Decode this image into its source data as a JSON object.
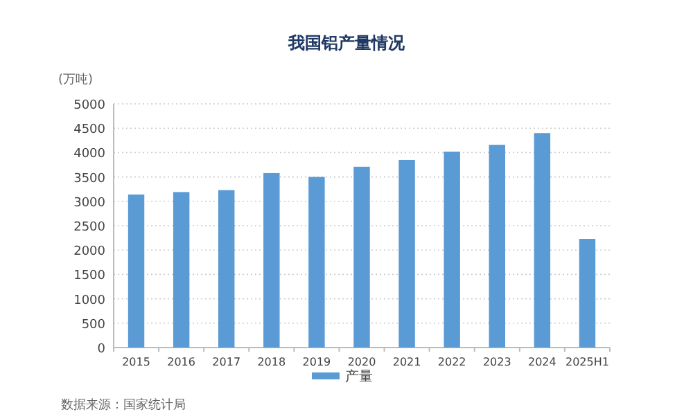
{
  "chart_data": {
    "type": "bar",
    "title": "我国铝产量情况",
    "ylabel": "(万吨)",
    "categories": [
      "2015",
      "2016",
      "2017",
      "2018",
      "2019",
      "2020",
      "2021",
      "2022",
      "2023",
      "2024",
      "2025H1"
    ],
    "series": [
      {
        "name": "产量",
        "color": "#5b9bd5",
        "values": [
          3140,
          3190,
          3230,
          3580,
          3500,
          3710,
          3850,
          4020,
          4160,
          4400,
          2230
        ]
      }
    ],
    "ylim": [
      0,
      5000
    ],
    "yticks": [
      0,
      500,
      1000,
      1500,
      2000,
      2500,
      3000,
      3500,
      4000,
      4500,
      5000
    ],
    "grid": "y",
    "legend": "bottom",
    "annotations": [
      "数据来源：国家统计局"
    ]
  }
}
